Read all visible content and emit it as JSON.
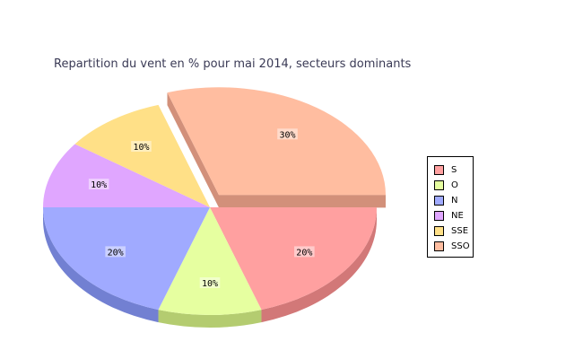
{
  "chart_data": {
    "type": "pie",
    "title": "Repartition du vent en % pour mai 2014, secteurs dominants",
    "categories": [
      "S",
      "O",
      "N",
      "NE",
      "SSE",
      "SSO"
    ],
    "values": [
      20,
      10,
      20,
      10,
      10,
      30
    ],
    "data_labels": [
      "20%",
      "10%",
      "20%",
      "10%",
      "10%",
      "30%"
    ],
    "colors": [
      "#ffa0a0",
      "#e6ffa0",
      "#a0aaff",
      "#e0a6ff",
      "#ffe087",
      "#ffbda0"
    ],
    "side_colors": [
      "#d27878",
      "#b4cc70",
      "#7280d2",
      "#b078d0",
      "#d2b264",
      "#d2907a"
    ],
    "exploded": "SSO",
    "legend_position": "right",
    "style": "3d"
  }
}
